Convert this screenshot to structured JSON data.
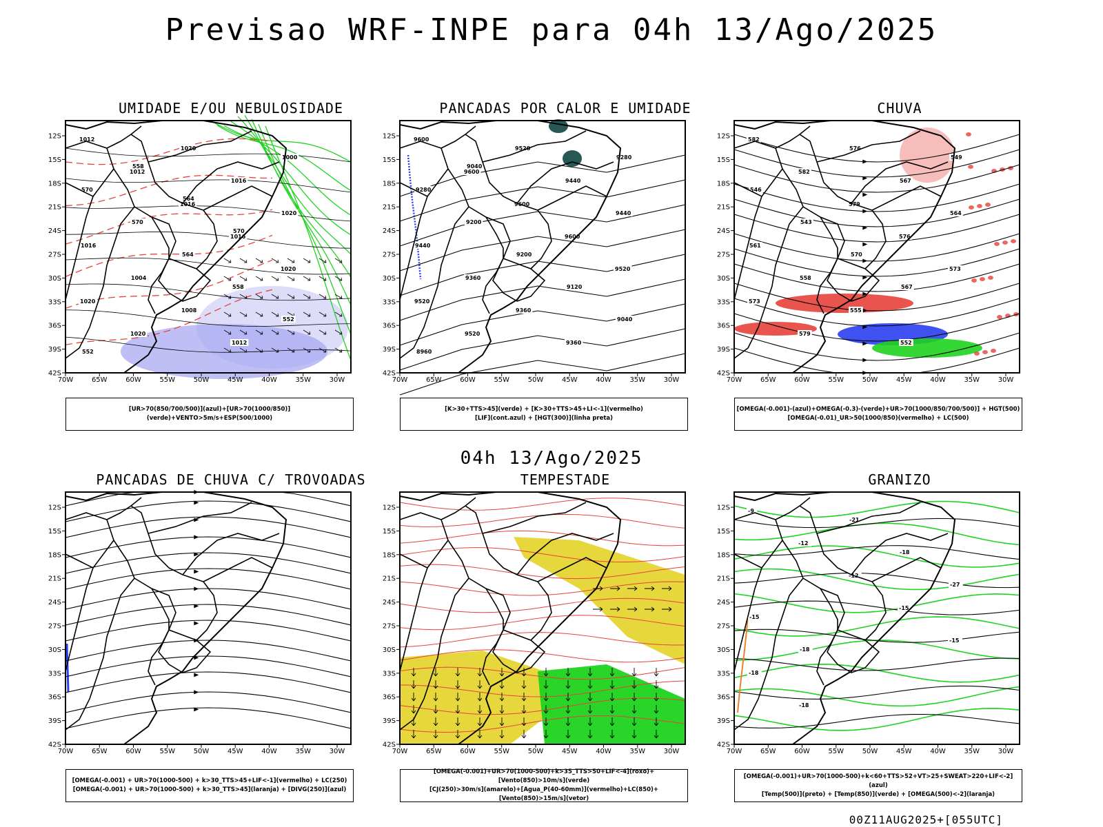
{
  "header": {
    "title": "Previsao WRF-INPE  para 04h 13/Ago/2025"
  },
  "mid_title": "04h 13/Ago/2025",
  "footer": "00Z11AUG2025+[055UTC]",
  "axes": {
    "lat_ticks": [
      "12S",
      "15S",
      "18S",
      "21S",
      "24S",
      "27S",
      "30S",
      "33S",
      "36S",
      "39S",
      "42S"
    ],
    "lon_ticks": [
      "70W",
      "65W",
      "60W",
      "55W",
      "50W",
      "45W",
      "40W",
      "35W",
      "30W"
    ]
  },
  "colors": {
    "red": "#e8413b",
    "green": "#1fd31f",
    "blue": "#2a3ff0",
    "yellow": "#e5d631",
    "lavender": "#a9a9f2",
    "darkteal": "#1c4f4b",
    "black": "#000000"
  },
  "panels": [
    {
      "id": "umidade",
      "title": "UMIDADE E/OU NEBULOSIDADE",
      "caption": [
        "[UR>70(850/700/500)](azul)+[UR>70(1000/850)](verde)+VENTO>5m/s+ESP(500/1000)"
      ],
      "contour_labels": [
        "1012",
        "1012",
        "1016",
        "1016",
        "1020",
        "1020",
        "1020",
        "1020",
        "1016",
        "1020",
        "1016",
        "1004",
        "1008",
        "1012",
        "1000",
        "570",
        "570",
        "564",
        "558",
        "552",
        "552",
        "558",
        "564",
        "570"
      ]
    },
    {
      "id": "pancadas-calor",
      "title": "PANCADAS POR CALOR E UMIDADE",
      "caption": [
        "[K>30+TTS>45](verde) + [K>30+TTS>45+LI<-1](vermelho)",
        "[LIF](cont.azul) + [HGT(300)](linha preta)"
      ],
      "contour_labels": [
        "9600",
        "9600",
        "9600",
        "9600",
        "9520",
        "9520",
        "9520",
        "9520",
        "9440",
        "9440",
        "9440",
        "9360",
        "9360",
        "9360",
        "9280",
        "9280",
        "9200",
        "9200",
        "9120",
        "9040",
        "8960",
        "9040"
      ]
    },
    {
      "id": "chuva",
      "title": "CHUVA",
      "caption": [
        "[OMEGA(-0.001)-(azul)+OMEGA(-0.3)-(verde)+UR>70(1000/850/700/500)] + HGT(500)",
        "[OMEGA(-0.01)_UR>50(1000/850)(vermelho) + LC(500)"
      ],
      "contour_labels": [
        "582",
        "582",
        "579",
        "576",
        "573",
        "573",
        "579",
        "576",
        "567",
        "564",
        "561",
        "558",
        "555",
        "552",
        "549",
        "546",
        "543",
        "570",
        "567"
      ]
    },
    {
      "id": "pancadas-trovoadas",
      "title": "PANCADAS DE CHUVA C/ TROVOADAS",
      "caption": [
        "[OMEGA(-0.001) + UR>70(1000-500) + k>30_TTS>45+LIF<-1](vermelho) + LC(250)",
        "[OMEGA(-0.001) + UR>70(1000-500) + k>30_TTS>45](laranja) + [DIVG(250)](azul)"
      ],
      "contour_labels": []
    },
    {
      "id": "tempestade",
      "title": "TEMPESTADE",
      "caption": [
        "[OMEGA(-0.001)+UR>70(1000-500)+k>35_TTS>50+LIF<-4](roxo)+[Vento(850)>10m/s](verde)",
        "[CJ(250)>30m/s](amarelo)+[Agua_P(40-60mm)](vermelho)+LC(850)+[Vento(850)>15m/s](vetor)"
      ],
      "contour_labels": []
    },
    {
      "id": "granizo",
      "title": "GRANIZO",
      "caption": [
        "[OMEGA(-0.001)+UR>70(1000-500)+k<60+TTS>52+VT>25+SWEAT>220+LIF<-2](azul)",
        "[Temp(500)](preto) + [Temp(850)](verde) + [OMEGA(500)<-2](laranja)"
      ],
      "contour_labels": [
        "-9",
        "-12",
        "-12",
        "-15",
        "-15",
        "-18",
        "-18",
        "-21",
        "-18",
        "-27",
        "-15",
        "-18"
      ]
    }
  ]
}
